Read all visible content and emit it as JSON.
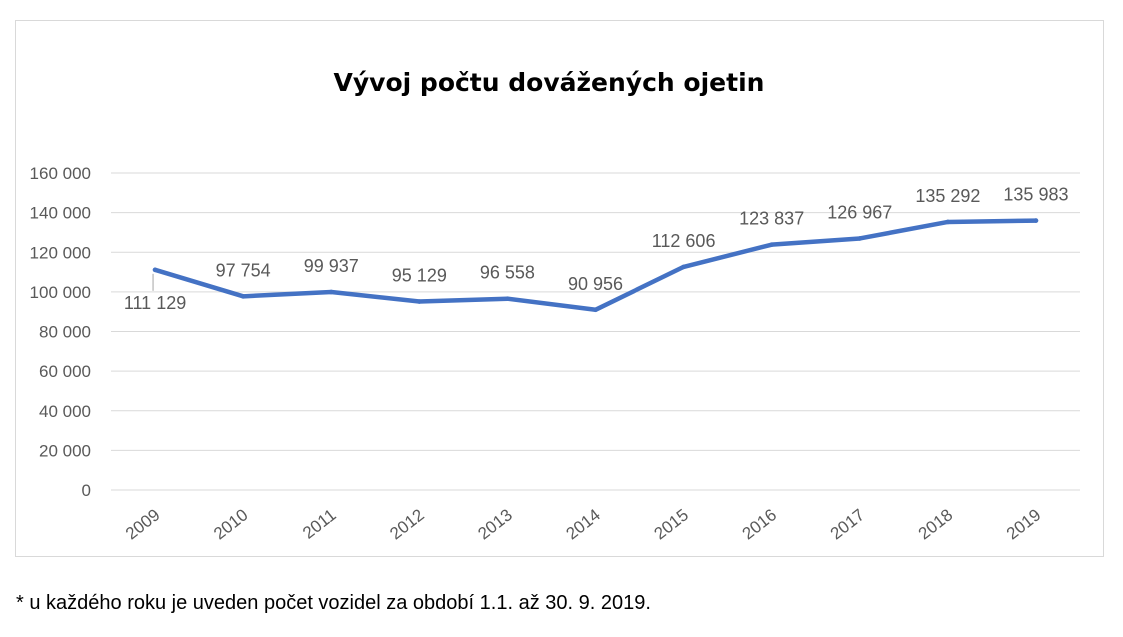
{
  "chart_data": {
    "type": "line",
    "title": "Vývoj počtu dovážených ojetin",
    "xlabel": "",
    "ylabel": "",
    "categories": [
      "2009",
      "2010",
      "2011",
      "2012",
      "2013",
      "2014",
      "2015",
      "2016",
      "2017",
      "2018",
      "2019"
    ],
    "series": [
      {
        "values": [
          111129,
          97754,
          99937,
          95129,
          96558,
          90956,
          112606,
          123837,
          126967,
          135292,
          135983
        ],
        "color": "#4472c4"
      }
    ],
    "data_labels": [
      "111 129",
      "97 754",
      "99 937",
      "95 129",
      "96 558",
      "90 956",
      "112 606",
      "123 837",
      "126 967",
      "135 292",
      "135 983"
    ],
    "y_ticks": [
      0,
      20000,
      40000,
      60000,
      80000,
      100000,
      120000,
      140000,
      160000
    ],
    "y_tick_labels": [
      "0",
      "20 000",
      "40 000",
      "60 000",
      "80 000",
      "100 000",
      "120 000",
      "140 000",
      "160 000"
    ],
    "ylim": [
      0,
      160000
    ],
    "grid": true,
    "legend": "none",
    "colors": {
      "line": "#4472c4",
      "grid": "#d9d9d9",
      "text": "#595959",
      "title": "#000000"
    }
  },
  "footnote": "* u každého roku je uveden počet vozidel za období 1.1. až 30. 9. 2019."
}
